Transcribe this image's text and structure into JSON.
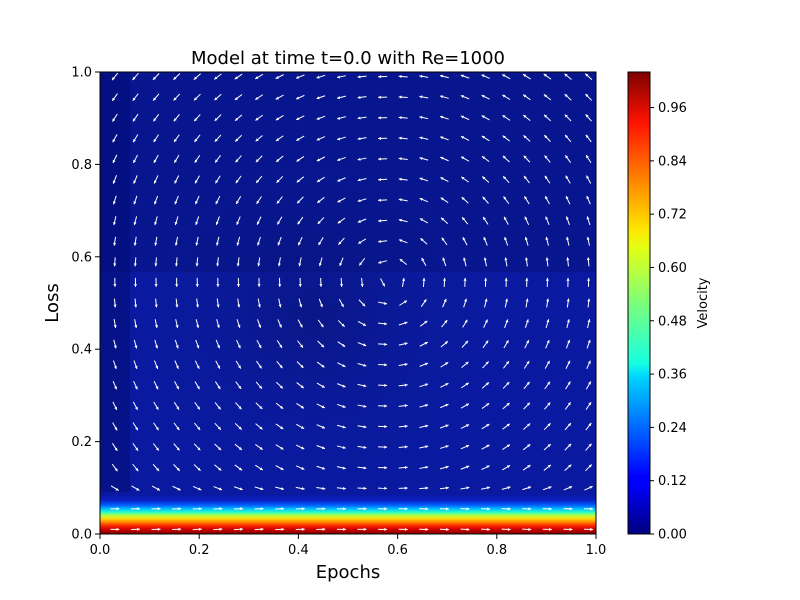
{
  "chart_data": {
    "type": "heatmap",
    "title": "Model at time t=0.0 with Re=1000",
    "xlabel": "Epochs",
    "ylabel": "Loss",
    "xlim": [
      0.0,
      1.0
    ],
    "ylim": [
      0.0,
      1.0
    ],
    "x_ticks": [
      "0.0",
      "0.2",
      "0.4",
      "0.6",
      "0.8",
      "1.0"
    ],
    "y_ticks": [
      "0.0",
      "0.2",
      "0.4",
      "0.6",
      "0.8",
      "1.0"
    ],
    "colorbar": {
      "label": "Velocity",
      "range": [
        0.0,
        1.04
      ],
      "ticks": [
        "0.00",
        "0.12",
        "0.24",
        "0.36",
        "0.48",
        "0.60",
        "0.72",
        "0.84",
        "0.96"
      ],
      "colormap": "jet"
    },
    "field": {
      "description_values": "velocity magnitude: ~1.0 near y=0 decaying to ~0 by y≈0.08; weak recirculation vortex above",
      "vectors": "quiver arrows showing lid-driven cavity flow with counterclockwise vortex"
    },
    "grid": false,
    "colors": {
      "arrow": "#ffffff",
      "background_low": "#00007f",
      "background_field": "#0a1aa0"
    }
  }
}
